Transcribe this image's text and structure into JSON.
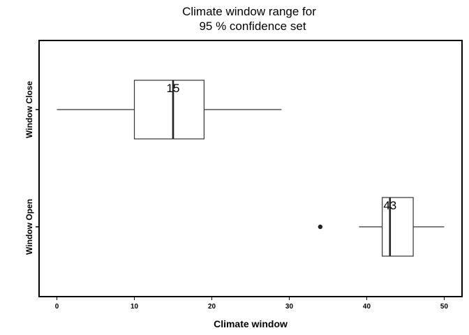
{
  "chart_data": {
    "type": "boxplot",
    "title_lines": [
      "Climate window range for",
      "95 % confidence set"
    ],
    "xlabel": "Climate window",
    "ylabel": "",
    "xlim": [
      -2.3,
      52.3
    ],
    "x_ticks": [
      0,
      10,
      20,
      30,
      40,
      50
    ],
    "grid": false,
    "legend": "none",
    "categories": [
      "Window Close",
      "Window Open"
    ],
    "series": [
      {
        "category": "Window Close",
        "whisker_low": 0,
        "q1": 10,
        "median": 15,
        "q3": 19,
        "whisker_high": 29,
        "outliers": [],
        "median_label": "15"
      },
      {
        "category": "Window Open",
        "whisker_low": 39,
        "q1": 42,
        "median": 43,
        "q3": 46,
        "whisker_high": 50,
        "outliers": [
          34
        ],
        "median_label": "43"
      }
    ]
  }
}
